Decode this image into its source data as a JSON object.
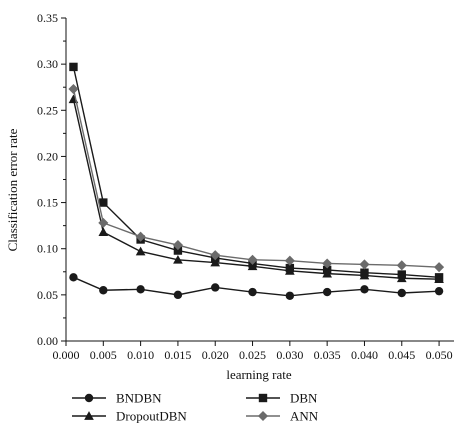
{
  "chart_data": {
    "type": "line",
    "title": "",
    "xlabel": "learning rate",
    "ylabel": "Classification error rate",
    "xlim": [
      0.0,
      0.052
    ],
    "ylim": [
      0.0,
      0.35
    ],
    "x_ticks": [
      "0.000",
      "0.005",
      "0.010",
      "0.015",
      "0.020",
      "0.025",
      "0.030",
      "0.035",
      "0.040",
      "0.045",
      "0.050"
    ],
    "y_ticks": [
      "0.00",
      "0.05",
      "0.10",
      "0.15",
      "0.20",
      "0.25",
      "0.30",
      "0.35"
    ],
    "x": [
      0.001,
      0.005,
      0.01,
      0.015,
      0.02,
      0.025,
      0.03,
      0.035,
      0.04,
      0.045,
      0.05
    ],
    "grid": false,
    "legend_position": "bottom",
    "series": [
      {
        "name": "BNDBN",
        "marker": "circle",
        "color": "#1a1a1a",
        "values": [
          0.069,
          0.055,
          0.056,
          0.05,
          0.058,
          0.053,
          0.049,
          0.053,
          0.056,
          0.052,
          0.054
        ]
      },
      {
        "name": "DBN",
        "marker": "square",
        "color": "#1a1a1a",
        "values": [
          0.297,
          0.15,
          0.11,
          0.098,
          0.09,
          0.084,
          0.079,
          0.077,
          0.074,
          0.072,
          0.069
        ]
      },
      {
        "name": "DropoutDBN",
        "marker": "triangle",
        "color": "#1a1a1a",
        "values": [
          0.262,
          0.118,
          0.097,
          0.088,
          0.085,
          0.081,
          0.076,
          0.073,
          0.071,
          0.068,
          0.067
        ]
      },
      {
        "name": "ANN",
        "marker": "diamond",
        "color": "#6b6b6b",
        "values": [
          0.273,
          0.128,
          0.113,
          0.104,
          0.093,
          0.088,
          0.087,
          0.084,
          0.083,
          0.082,
          0.08
        ]
      }
    ]
  }
}
